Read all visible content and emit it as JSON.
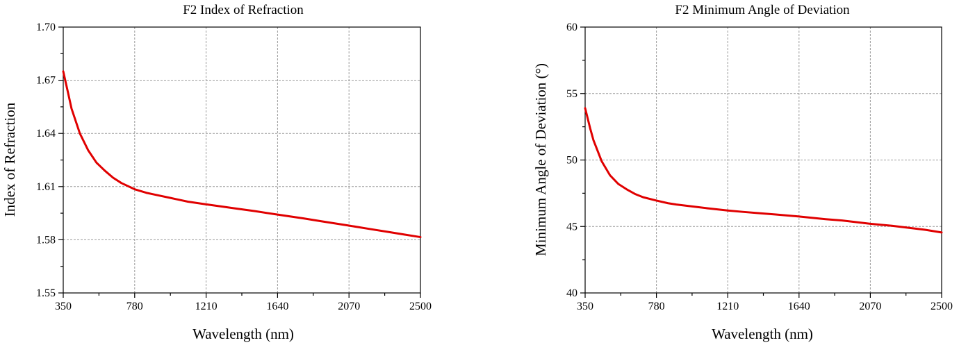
{
  "colors": {
    "series": "#e00000",
    "grid": "#9a9a9a",
    "axis": "#000000"
  },
  "chart_data": [
    {
      "type": "line",
      "title": "F2 Index of Refraction",
      "xlabel": "Wavelength (nm)",
      "ylabel": "Index of Refraction",
      "xlim": [
        350,
        2500
      ],
      "ylim": [
        1.55,
        1.7
      ],
      "xticks": [
        "350",
        "780",
        "1210",
        "1640",
        "2070",
        "2500"
      ],
      "yticks": [
        "1.55",
        "1.58",
        "1.61",
        "1.64",
        "1.67",
        "1.70"
      ],
      "grid": true,
      "series": [
        {
          "x": [
            350,
            380,
            400,
            450,
            500,
            550,
            600,
            650,
            700,
            780,
            850,
            900,
            1000,
            1100,
            1210,
            1300,
            1400,
            1500,
            1640,
            1800,
            1900,
            2070,
            2200,
            2300,
            2400,
            2500
          ],
          "values": [
            1.675,
            1.6625,
            1.654,
            1.64,
            1.6305,
            1.6235,
            1.619,
            1.615,
            1.612,
            1.6085,
            1.6065,
            1.6055,
            1.6035,
            1.6015,
            1.6,
            1.5988,
            1.5975,
            1.5962,
            1.5942,
            1.592,
            1.5905,
            1.588,
            1.586,
            1.5845,
            1.583,
            1.5815
          ]
        }
      ]
    },
    {
      "type": "line",
      "title": "F2 Minimum Angle of Deviation",
      "xlabel": "Wavelength (nm)",
      "ylabel": "Minimum Angle of Deviation (°)",
      "xlim": [
        350,
        2500
      ],
      "ylim": [
        40,
        60
      ],
      "xticks": [
        "350",
        "780",
        "1210",
        "1640",
        "2070",
        "2500"
      ],
      "yticks": [
        "40",
        "45",
        "50",
        "55",
        "60"
      ],
      "grid": true,
      "series": [
        {
          "x": [
            350,
            380,
            400,
            450,
            500,
            550,
            600,
            650,
            700,
            780,
            850,
            900,
            1000,
            1100,
            1210,
            1300,
            1400,
            1500,
            1640,
            1800,
            1900,
            2070,
            2200,
            2300,
            2400,
            2500
          ],
          "values": [
            53.9,
            52.4,
            51.5,
            49.9,
            48.85,
            48.2,
            47.8,
            47.45,
            47.2,
            46.95,
            46.75,
            46.65,
            46.5,
            46.35,
            46.2,
            46.1,
            46.0,
            45.9,
            45.75,
            45.55,
            45.45,
            45.2,
            45.05,
            44.9,
            44.75,
            44.55
          ]
        }
      ]
    }
  ]
}
